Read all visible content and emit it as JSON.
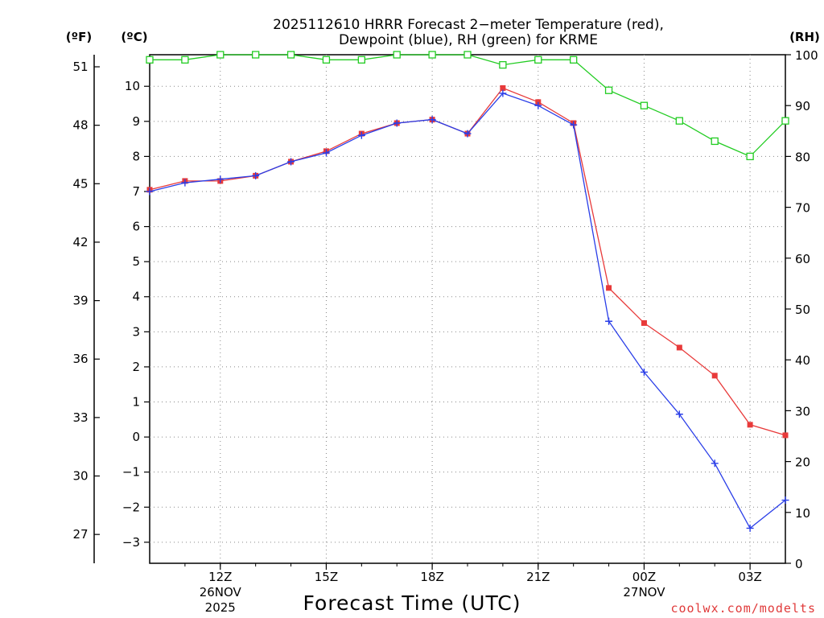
{
  "title_line1": "2025112610 HRRR Forecast 2−meter Temperature (red),",
  "title_line2": "Dewpoint (blue), RH (green) for KRME",
  "credit": "coolwx.com/modelts",
  "chart_data": {
    "type": "line",
    "title": "2025112610 HRRR Forecast 2-meter Temperature (red), Dewpoint (blue), RH (green) for KRME",
    "xlabel": "Forecast Time (UTC)",
    "xlim": [
      10,
      28
    ],
    "x": [
      10,
      11,
      12,
      13,
      14,
      15,
      16,
      17,
      18,
      19,
      20,
      21,
      22,
      23,
      24,
      25,
      26,
      27,
      28
    ],
    "x_ticks": [
      {
        "x": 12,
        "label": "12Z",
        "sub1": "26NOV",
        "sub2": "2025"
      },
      {
        "x": 15,
        "label": "15Z",
        "sub1": "",
        "sub2": ""
      },
      {
        "x": 18,
        "label": "18Z",
        "sub1": "",
        "sub2": ""
      },
      {
        "x": 21,
        "label": "21Z",
        "sub1": "",
        "sub2": ""
      },
      {
        "x": 24,
        "label": "00Z",
        "sub1": "27NOV",
        "sub2": ""
      },
      {
        "x": 27,
        "label": "03Z",
        "sub1": "",
        "sub2": ""
      }
    ],
    "axes": {
      "celsius": {
        "label": "(ºC)",
        "ylim": [
          -3.6,
          10.9
        ],
        "ticks": [
          10,
          9,
          8,
          7,
          6,
          5,
          4,
          3,
          2,
          1,
          0,
          -1,
          -2,
          -3
        ],
        "tick_labels": [
          "10",
          "9",
          "8",
          "7",
          "6",
          "5",
          "4",
          "3",
          "2",
          "1",
          "0",
          "−1",
          "−2",
          "−3"
        ]
      },
      "fahrenheit": {
        "label": "(ºF)",
        "ticks": [
          51,
          48,
          45,
          42,
          39,
          36,
          33,
          30,
          27
        ]
      },
      "rh": {
        "label": "(RH)",
        "ylim": [
          0,
          100
        ],
        "ticks": [
          100,
          90,
          80,
          70,
          60,
          50,
          40,
          30,
          20,
          10,
          0
        ]
      }
    },
    "series": [
      {
        "name": "Temperature",
        "color": "#e83a3a",
        "axis": "celsius",
        "marker": "square-filled",
        "values": [
          7.05,
          7.3,
          7.3,
          7.45,
          7.85,
          8.15,
          8.65,
          8.95,
          9.05,
          8.65,
          9.95,
          9.55,
          8.95,
          4.25,
          3.25,
          2.55,
          1.75,
          0.35,
          0.05
        ]
      },
      {
        "name": "Dewpoint",
        "color": "#2a3ee8",
        "axis": "celsius",
        "marker": "plus",
        "values": [
          7.0,
          7.25,
          7.35,
          7.45,
          7.85,
          8.1,
          8.6,
          8.95,
          9.05,
          8.65,
          9.8,
          9.45,
          8.9,
          3.3,
          1.85,
          0.65,
          -0.75,
          -2.6,
          -1.8
        ]
      },
      {
        "name": "RH",
        "color": "#22cc22",
        "axis": "rh",
        "marker": "square-open",
        "values": [
          99,
          99,
          100,
          100,
          100,
          99,
          99,
          100,
          100,
          100,
          98,
          99,
          99,
          93,
          90,
          87,
          83,
          80,
          87
        ]
      }
    ]
  }
}
